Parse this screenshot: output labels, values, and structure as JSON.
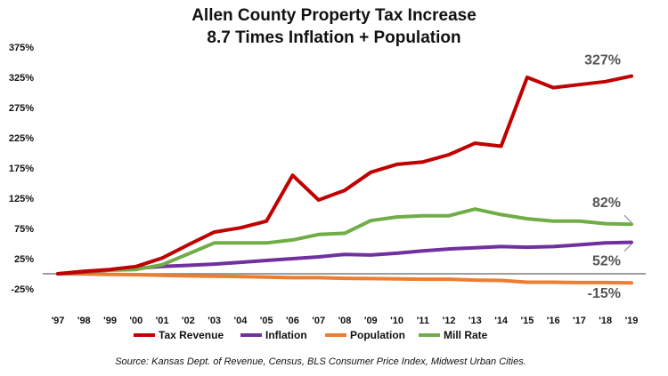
{
  "chart_data": {
    "type": "line",
    "title": "Allen County Property Tax Increase",
    "subtitle": "8.7 Times Inflation + Population",
    "xlabel": "",
    "ylabel": "",
    "x": [
      "'97",
      "'98",
      "'99",
      "'00",
      "'01",
      "'02",
      "'03",
      "'04",
      "'05",
      "'06",
      "'07",
      "'08",
      "'09",
      "'10",
      "'11",
      "'12",
      "'13",
      "'14",
      "'15",
      "'16",
      "'17",
      "'18",
      "'19"
    ],
    "yticks": [
      "-25%",
      "25%",
      "75%",
      "125%",
      "175%",
      "225%",
      "275%",
      "325%",
      "375%"
    ],
    "ylim": [
      -25,
      375
    ],
    "grid": false,
    "legend_position": "bottom",
    "series": [
      {
        "name": "Tax Revenue",
        "color": "#c00000",
        "values": [
          0,
          4,
          7,
          12,
          26,
          48,
          69,
          76,
          87,
          163,
          122,
          138,
          168,
          181,
          185,
          197,
          216,
          211,
          325,
          308,
          313,
          318,
          327
        ]
      },
      {
        "name": "Inflation",
        "color": "#7030a0",
        "values": [
          0,
          3,
          6,
          9,
          12,
          14,
          16,
          19,
          22,
          25,
          28,
          32,
          31,
          34,
          38,
          41,
          43,
          45,
          44,
          45,
          48,
          51,
          52
        ]
      },
      {
        "name": "Population",
        "color": "#ed7d31",
        "values": [
          0,
          -0.5,
          -1,
          -1.5,
          -2.5,
          -3.5,
          -4,
          -4.5,
          -5.5,
          -6.5,
          -6.5,
          -7.5,
          -8,
          -8.5,
          -9,
          -9,
          -10.5,
          -11,
          -14,
          -14,
          -14.5,
          -14.5,
          -15
        ]
      },
      {
        "name": "Mill Rate",
        "color": "#70ad47",
        "values": [
          0,
          4,
          6,
          7,
          15,
          33,
          51,
          51,
          51,
          56,
          65,
          67,
          88,
          94,
          96,
          96,
          107,
          98,
          91,
          87,
          87,
          83,
          82
        ]
      }
    ],
    "annotations": [
      {
        "text": "327%",
        "series": "Tax Revenue"
      },
      {
        "text": "82%",
        "series": "Mill Rate"
      },
      {
        "text": "52%",
        "series": "Inflation"
      },
      {
        "text": "-15%",
        "series": "Population"
      }
    ],
    "source": "Source: Kansas Dept. of Revenue, Census, BLS Consumer Price Index, Midwest Urban Cities."
  }
}
